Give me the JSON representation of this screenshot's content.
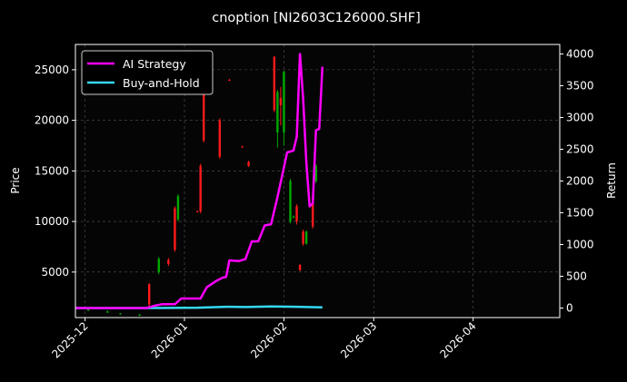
{
  "chart_data": {
    "type": "line",
    "title": "cnoption [NI2603C126000.SHF]",
    "ylabel_left": "Price",
    "ylabel_right": "Return",
    "x_range": [
      "2025-11-28",
      "2026-04-28"
    ],
    "x_ticks": [
      "2025-12",
      "2026-01",
      "2026-02",
      "2026-03",
      "2026-04"
    ],
    "y_left_range": [
      500,
      27500
    ],
    "y_left_ticks": [
      5000,
      10000,
      15000,
      20000,
      25000
    ],
    "y_right_range": [
      -150,
      4150
    ],
    "y_right_ticks": [
      0,
      500,
      1000,
      1500,
      2000,
      2500,
      3000,
      3500,
      4000
    ],
    "grid": true,
    "legend_position": "top-left",
    "colors": {
      "background": "#000000",
      "ai_strategy": "#ff00ff",
      "buy_and_hold": "#33d9f2",
      "candle_up": "#ff1a1a",
      "candle_down": "#00aa00"
    },
    "series": [
      {
        "name": "AI Strategy",
        "axis": "right",
        "points": [
          [
            "2025-11-28",
            0
          ],
          [
            "2025-12-20",
            0
          ],
          [
            "2025-12-23",
            40
          ],
          [
            "2025-12-25",
            60
          ],
          [
            "2025-12-29",
            60
          ],
          [
            "2025-12-31",
            150
          ],
          [
            "2026-01-06",
            150
          ],
          [
            "2026-01-08",
            330
          ],
          [
            "2026-01-11",
            430
          ],
          [
            "2026-01-13",
            480
          ],
          [
            "2026-01-14",
            490
          ],
          [
            "2026-01-15",
            750
          ],
          [
            "2026-01-18",
            740
          ],
          [
            "2026-01-20",
            770
          ],
          [
            "2026-01-22",
            1050
          ],
          [
            "2026-01-24",
            1050
          ],
          [
            "2026-01-26",
            1300
          ],
          [
            "2026-01-28",
            1320
          ],
          [
            "2026-01-30",
            1750
          ],
          [
            "2026-02-02",
            2450
          ],
          [
            "2026-02-04",
            2480
          ],
          [
            "2026-02-05",
            2700
          ],
          [
            "2026-02-06",
            4000
          ],
          [
            "2026-02-07",
            3300
          ],
          [
            "2026-02-08",
            2300
          ],
          [
            "2026-02-09",
            1600
          ],
          [
            "2026-02-10",
            1650
          ],
          [
            "2026-02-11",
            2800
          ],
          [
            "2026-02-12",
            2820
          ],
          [
            "2026-02-13",
            3800
          ]
        ]
      },
      {
        "name": "Buy-and-Hold",
        "axis": "right",
        "points": [
          [
            "2025-11-28",
            0
          ],
          [
            "2025-12-20",
            0
          ],
          [
            "2026-01-05",
            5
          ],
          [
            "2026-01-14",
            20
          ],
          [
            "2026-01-20",
            15
          ],
          [
            "2026-01-28",
            25
          ],
          [
            "2026-02-05",
            20
          ],
          [
            "2026-02-13",
            10
          ]
        ]
      }
    ],
    "candles": [
      {
        "date": "2025-12-02",
        "open": 1300,
        "close": 1200,
        "high": 1350,
        "low": 1150
      },
      {
        "date": "2025-12-08",
        "open": 1100,
        "close": 1000,
        "high": 1200,
        "low": 950
      },
      {
        "date": "2025-12-12",
        "open": 900,
        "close": 850,
        "high": 950,
        "low": 800
      },
      {
        "date": "2025-12-18",
        "open": 800,
        "close": 700,
        "high": 850,
        "low": 650
      },
      {
        "date": "2025-12-21",
        "open": 1800,
        "close": 3800,
        "high": 3900,
        "low": 1500
      },
      {
        "date": "2025-12-24",
        "open": 6300,
        "close": 5000,
        "high": 6500,
        "low": 4800
      },
      {
        "date": "2025-12-27",
        "open": 5800,
        "close": 6200,
        "high": 6400,
        "low": 5600
      },
      {
        "date": "2025-12-29",
        "open": 7200,
        "close": 11300,
        "high": 11500,
        "low": 7000
      },
      {
        "date": "2025-12-30",
        "open": 12500,
        "close": 10200,
        "high": 12700,
        "low": 10000
      },
      {
        "date": "2026-01-05",
        "open": 11000,
        "close": 11000,
        "high": 11100,
        "low": 10900
      },
      {
        "date": "2026-01-06",
        "open": 11000,
        "close": 15500,
        "high": 15700,
        "low": 10800
      },
      {
        "date": "2026-01-07",
        "open": 18000,
        "close": 23000,
        "high": 23500,
        "low": 17800
      },
      {
        "date": "2026-01-12",
        "open": 16400,
        "close": 20000,
        "high": 20200,
        "low": 16200
      },
      {
        "date": "2026-01-15",
        "open": 24000,
        "close": 24000,
        "high": 24100,
        "low": 23900
      },
      {
        "date": "2026-01-19",
        "open": 17400,
        "close": 17400,
        "high": 17500,
        "low": 17300
      },
      {
        "date": "2026-01-21",
        "open": 15500,
        "close": 15900,
        "high": 16000,
        "low": 15400
      },
      {
        "date": "2026-01-29",
        "open": 21000,
        "close": 26300,
        "high": 26300,
        "low": 20800
      },
      {
        "date": "2026-01-30",
        "open": 22800,
        "close": 18800,
        "high": 23000,
        "low": 17300
      },
      {
        "date": "2026-01-31",
        "open": 21500,
        "close": 22200,
        "high": 23300,
        "low": 19500
      },
      {
        "date": "2026-02-01",
        "open": 24800,
        "close": 18800,
        "high": 24900,
        "low": 17500
      },
      {
        "date": "2026-02-03",
        "open": 14000,
        "close": 10000,
        "high": 14200,
        "low": 9800
      },
      {
        "date": "2026-02-04",
        "open": 10500,
        "close": 10400,
        "high": 10600,
        "low": 10300
      },
      {
        "date": "2026-02-05",
        "open": 10000,
        "close": 11500,
        "high": 11700,
        "low": 9700
      },
      {
        "date": "2026-02-06",
        "open": 5200,
        "close": 5700,
        "high": 5800,
        "low": 5100
      },
      {
        "date": "2026-02-07",
        "open": 7800,
        "close": 9000,
        "high": 9200,
        "low": 7600
      },
      {
        "date": "2026-02-08",
        "open": 9000,
        "close": 7800,
        "high": 9100,
        "low": 7700
      },
      {
        "date": "2026-02-10",
        "open": 9500,
        "close": 12500,
        "high": 12800,
        "low": 9300
      },
      {
        "date": "2026-02-11",
        "open": 15500,
        "close": 14000,
        "high": 15700,
        "low": 13800
      }
    ]
  }
}
